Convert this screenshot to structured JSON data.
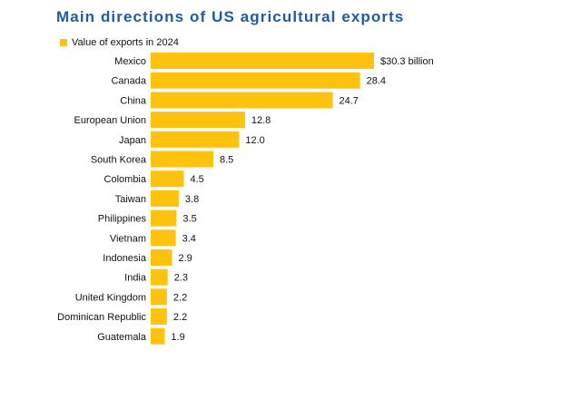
{
  "chart_data": {
    "type": "bar",
    "orientation": "horizontal",
    "title": "Main directions of US agricultural exports",
    "legend": {
      "position": "top-left",
      "entries": [
        "Value of exports in 2024"
      ]
    },
    "series": [
      {
        "name": "Value of exports in 2024",
        "color": "#ffc20e",
        "values": [
          30.3,
          28.4,
          24.7,
          12.8,
          12.0,
          8.5,
          4.5,
          3.8,
          3.5,
          3.4,
          2.9,
          2.3,
          2.2,
          2.2,
          1.9
        ]
      }
    ],
    "categories": [
      "Mexico",
      "Canada",
      "China",
      "European Union",
      "Japan",
      "South Korea",
      "Colombia",
      "Taiwan",
      "Philippines",
      "Vietnam",
      "Indonesia",
      "India",
      "United Kingdom",
      "Dominican Republic",
      "Guatemala"
    ],
    "data_labels": [
      "$30.3 billion",
      "28.4",
      "24.7",
      "12.8",
      "12.0",
      "8.5",
      "4.5",
      "3.8",
      "3.5",
      "3.4",
      "2.9",
      "2.3",
      "2.2",
      "2.2",
      "1.9"
    ],
    "xlim": [
      0,
      30.3
    ],
    "grid": false,
    "colors": {
      "bar": "#ffc20e",
      "title": "#1f5aa6",
      "text": "#111111"
    }
  }
}
